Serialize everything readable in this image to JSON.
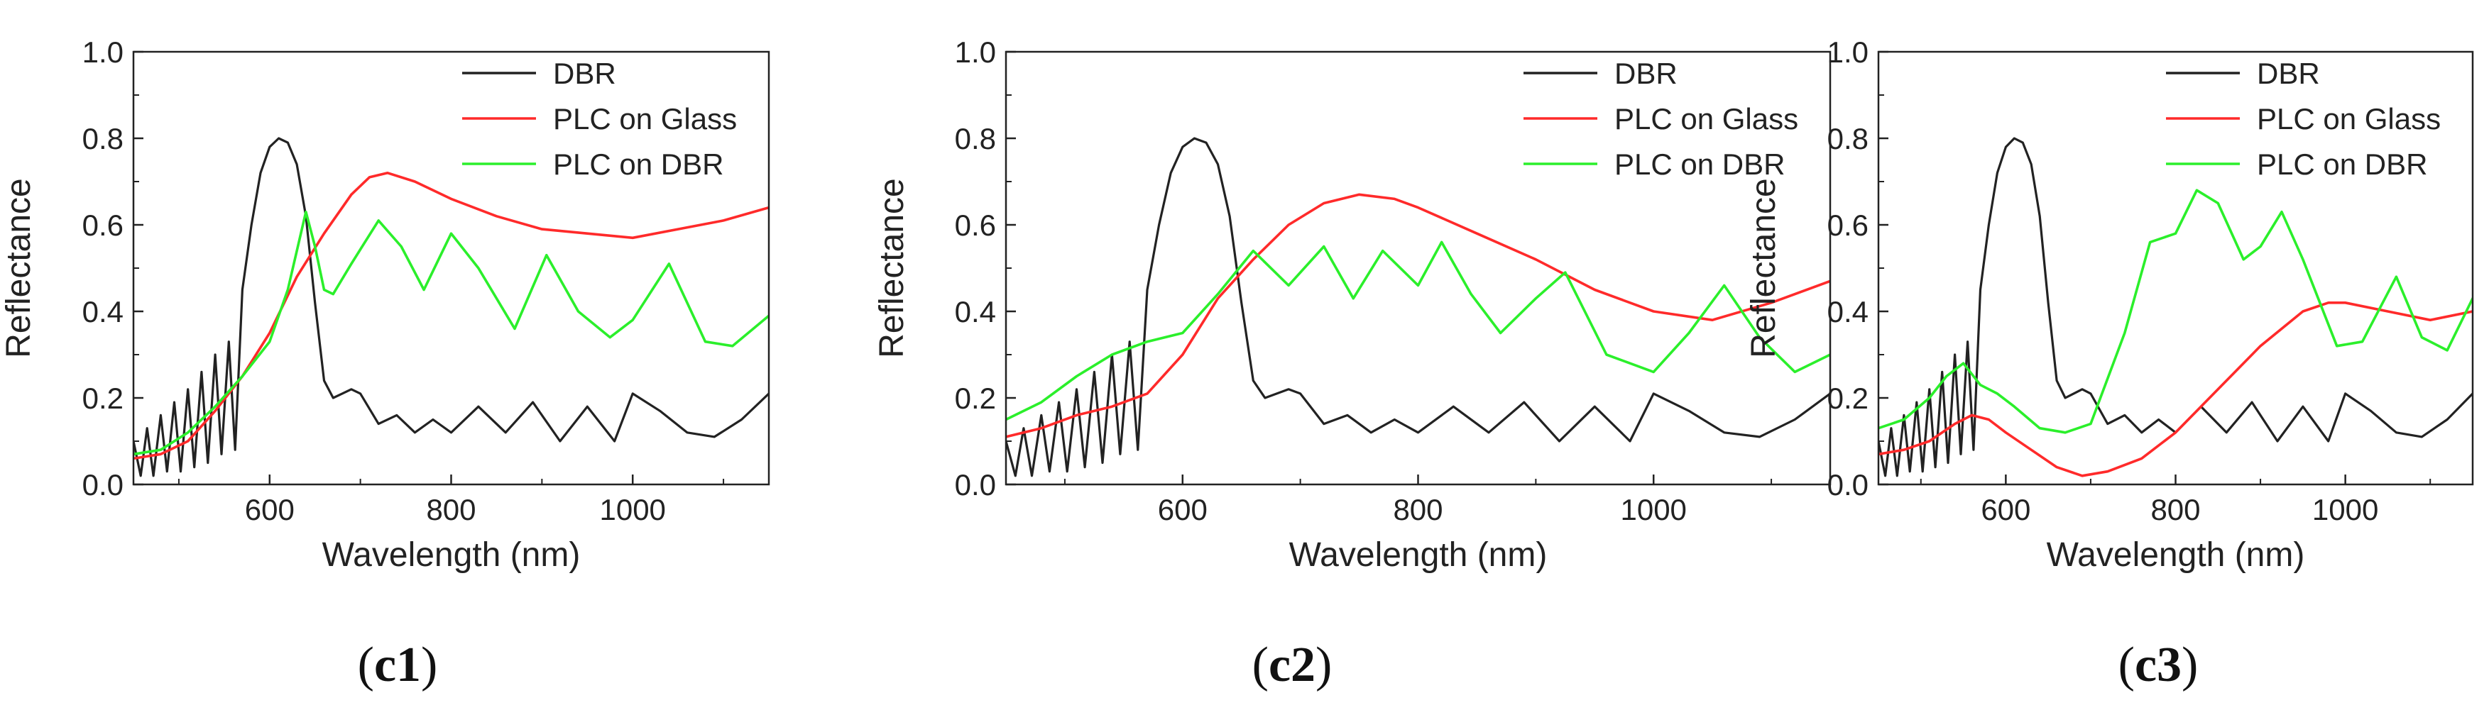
{
  "colors": {
    "DBR": "#222222",
    "PLC on Glass": "#ff2a2a",
    "PLC on DBR": "#2bef2b",
    "axis": "#222222",
    "text": "#222222"
  },
  "chart_data": [
    {
      "type": "line",
      "caption": {
        "open": "(",
        "label": "c1",
        "close": ")"
      },
      "xlabel": "Wavelength (nm)",
      "ylabel": "Reflectance",
      "xlim": [
        450,
        1150
      ],
      "ylim": [
        0.0,
        1.0
      ],
      "xticks": [
        600,
        800,
        1000
      ],
      "xtick_labels": [
        "600",
        "800",
        "1000"
      ],
      "yticks": [
        0.0,
        0.2,
        0.4,
        0.6,
        0.8,
        1.0
      ],
      "ytick_labels": [
        "0.0",
        "0.2",
        "0.4",
        "0.6",
        "0.8",
        "1.0"
      ],
      "legend": "top-right",
      "series": [
        {
          "name": "DBR",
          "x": [
            450,
            458,
            465,
            472,
            480,
            487,
            495,
            502,
            510,
            517,
            525,
            532,
            540,
            547,
            555,
            562,
            570,
            580,
            590,
            600,
            610,
            620,
            630,
            640,
            650,
            660,
            670,
            680,
            690,
            700,
            720,
            740,
            760,
            780,
            800,
            830,
            860,
            890,
            920,
            950,
            980,
            1000,
            1030,
            1060,
            1090,
            1120,
            1150
          ],
          "y": [
            0.1,
            0.02,
            0.13,
            0.02,
            0.16,
            0.03,
            0.19,
            0.03,
            0.22,
            0.04,
            0.26,
            0.05,
            0.3,
            0.07,
            0.33,
            0.08,
            0.45,
            0.6,
            0.72,
            0.78,
            0.8,
            0.79,
            0.74,
            0.62,
            0.42,
            0.24,
            0.2,
            0.21,
            0.22,
            0.21,
            0.14,
            0.16,
            0.12,
            0.15,
            0.12,
            0.18,
            0.12,
            0.19,
            0.1,
            0.18,
            0.1,
            0.21,
            0.17,
            0.12,
            0.11,
            0.15,
            0.21
          ]
        },
        {
          "name": "PLC on Glass",
          "x": [
            450,
            480,
            510,
            540,
            570,
            600,
            630,
            660,
            690,
            710,
            730,
            760,
            800,
            850,
            900,
            950,
            1000,
            1050,
            1100,
            1150
          ],
          "y": [
            0.06,
            0.07,
            0.1,
            0.17,
            0.25,
            0.35,
            0.48,
            0.58,
            0.67,
            0.71,
            0.72,
            0.7,
            0.66,
            0.62,
            0.59,
            0.58,
            0.57,
            0.59,
            0.61,
            0.64
          ]
        },
        {
          "name": "PLC on DBR",
          "x": [
            450,
            480,
            510,
            540,
            570,
            600,
            620,
            640,
            650,
            660,
            670,
            690,
            720,
            745,
            770,
            800,
            830,
            870,
            905,
            940,
            975,
            1000,
            1040,
            1080,
            1110,
            1150
          ],
          "y": [
            0.07,
            0.08,
            0.12,
            0.18,
            0.25,
            0.33,
            0.45,
            0.63,
            0.55,
            0.45,
            0.44,
            0.51,
            0.61,
            0.55,
            0.45,
            0.58,
            0.5,
            0.36,
            0.53,
            0.4,
            0.34,
            0.38,
            0.51,
            0.33,
            0.32,
            0.39
          ]
        }
      ]
    },
    {
      "type": "line",
      "caption": {
        "open": "(",
        "label": "c2",
        "close": ")"
      },
      "xlabel": "Wavelength (nm)",
      "ylabel": "Reflectance",
      "xlim": [
        450,
        1150
      ],
      "ylim": [
        0.0,
        1.0
      ],
      "xticks": [
        600,
        800,
        1000
      ],
      "xtick_labels": [
        "600",
        "800",
        "1000"
      ],
      "yticks": [
        0.0,
        0.2,
        0.4,
        0.6,
        0.8,
        1.0
      ],
      "ytick_labels": [
        "0.0",
        "0.2",
        "0.4",
        "0.6",
        "0.8",
        "1.0"
      ],
      "legend": "top-right",
      "series": [
        {
          "name": "DBR",
          "x": [
            450,
            458,
            465,
            472,
            480,
            487,
            495,
            502,
            510,
            517,
            525,
            532,
            540,
            547,
            555,
            562,
            570,
            580,
            590,
            600,
            610,
            620,
            630,
            640,
            650,
            660,
            670,
            680,
            690,
            700,
            720,
            740,
            760,
            780,
            800,
            830,
            860,
            890,
            920,
            950,
            980,
            1000,
            1030,
            1060,
            1090,
            1120,
            1150
          ],
          "y": [
            0.1,
            0.02,
            0.13,
            0.02,
            0.16,
            0.03,
            0.19,
            0.03,
            0.22,
            0.04,
            0.26,
            0.05,
            0.3,
            0.07,
            0.33,
            0.08,
            0.45,
            0.6,
            0.72,
            0.78,
            0.8,
            0.79,
            0.74,
            0.62,
            0.42,
            0.24,
            0.2,
            0.21,
            0.22,
            0.21,
            0.14,
            0.16,
            0.12,
            0.15,
            0.12,
            0.18,
            0.12,
            0.19,
            0.1,
            0.18,
            0.1,
            0.21,
            0.17,
            0.12,
            0.11,
            0.15,
            0.21
          ]
        },
        {
          "name": "PLC on Glass",
          "x": [
            450,
            480,
            510,
            540,
            570,
            600,
            630,
            660,
            690,
            720,
            750,
            780,
            800,
            850,
            900,
            950,
            1000,
            1050,
            1100,
            1150
          ],
          "y": [
            0.11,
            0.13,
            0.16,
            0.18,
            0.21,
            0.3,
            0.43,
            0.52,
            0.6,
            0.65,
            0.67,
            0.66,
            0.64,
            0.58,
            0.52,
            0.45,
            0.4,
            0.38,
            0.42,
            0.47
          ]
        },
        {
          "name": "PLC on DBR",
          "x": [
            450,
            480,
            510,
            540,
            570,
            600,
            630,
            660,
            690,
            720,
            745,
            770,
            800,
            820,
            845,
            870,
            900,
            925,
            960,
            1000,
            1030,
            1060,
            1090,
            1120,
            1150
          ],
          "y": [
            0.15,
            0.19,
            0.25,
            0.3,
            0.33,
            0.35,
            0.44,
            0.54,
            0.46,
            0.55,
            0.43,
            0.54,
            0.46,
            0.56,
            0.44,
            0.35,
            0.43,
            0.49,
            0.3,
            0.26,
            0.35,
            0.46,
            0.34,
            0.26,
            0.3
          ]
        }
      ]
    },
    {
      "type": "line",
      "caption": {
        "open": "(",
        "label": "c3",
        "close": ")"
      },
      "xlabel": "Wavelength (nm)",
      "ylabel": "Reflectance",
      "xlim": [
        450,
        1150
      ],
      "ylim": [
        0.0,
        1.0
      ],
      "xticks": [
        600,
        800,
        1000
      ],
      "xtick_labels": [
        "600",
        "800",
        "1000"
      ],
      "yticks": [
        0.0,
        0.2,
        0.4,
        0.6,
        0.8,
        1.0
      ],
      "ytick_labels": [
        "0.0",
        "0.2",
        "0.4",
        "0.6",
        "0.8",
        "1.0"
      ],
      "legend": "top-right",
      "series": [
        {
          "name": "DBR",
          "x": [
            450,
            458,
            465,
            472,
            480,
            487,
            495,
            502,
            510,
            517,
            525,
            532,
            540,
            547,
            555,
            562,
            570,
            580,
            590,
            600,
            610,
            620,
            630,
            640,
            650,
            660,
            670,
            680,
            690,
            700,
            720,
            740,
            760,
            780,
            800,
            830,
            860,
            890,
            920,
            950,
            980,
            1000,
            1030,
            1060,
            1090,
            1120,
            1150
          ],
          "y": [
            0.1,
            0.02,
            0.13,
            0.02,
            0.16,
            0.03,
            0.19,
            0.03,
            0.22,
            0.04,
            0.26,
            0.05,
            0.3,
            0.07,
            0.33,
            0.08,
            0.45,
            0.6,
            0.72,
            0.78,
            0.8,
            0.79,
            0.74,
            0.62,
            0.42,
            0.24,
            0.2,
            0.21,
            0.22,
            0.21,
            0.14,
            0.16,
            0.12,
            0.15,
            0.12,
            0.18,
            0.12,
            0.19,
            0.1,
            0.18,
            0.1,
            0.21,
            0.17,
            0.12,
            0.11,
            0.15,
            0.21
          ]
        },
        {
          "name": "PLC on Glass",
          "x": [
            450,
            480,
            510,
            540,
            560,
            580,
            600,
            630,
            660,
            690,
            720,
            760,
            800,
            850,
            900,
            950,
            980,
            1000,
            1050,
            1100,
            1150
          ],
          "y": [
            0.07,
            0.08,
            0.1,
            0.14,
            0.16,
            0.15,
            0.12,
            0.08,
            0.04,
            0.02,
            0.03,
            0.06,
            0.12,
            0.22,
            0.32,
            0.4,
            0.42,
            0.42,
            0.4,
            0.38,
            0.4
          ]
        },
        {
          "name": "PLC on DBR",
          "x": [
            450,
            480,
            510,
            530,
            550,
            570,
            590,
            610,
            640,
            670,
            700,
            740,
            770,
            800,
            825,
            850,
            880,
            900,
            925,
            950,
            990,
            1020,
            1060,
            1090,
            1120,
            1150
          ],
          "y": [
            0.13,
            0.15,
            0.2,
            0.25,
            0.28,
            0.23,
            0.21,
            0.18,
            0.13,
            0.12,
            0.14,
            0.35,
            0.56,
            0.58,
            0.68,
            0.65,
            0.52,
            0.55,
            0.63,
            0.52,
            0.32,
            0.33,
            0.48,
            0.34,
            0.31,
            0.43
          ]
        }
      ]
    }
  ]
}
